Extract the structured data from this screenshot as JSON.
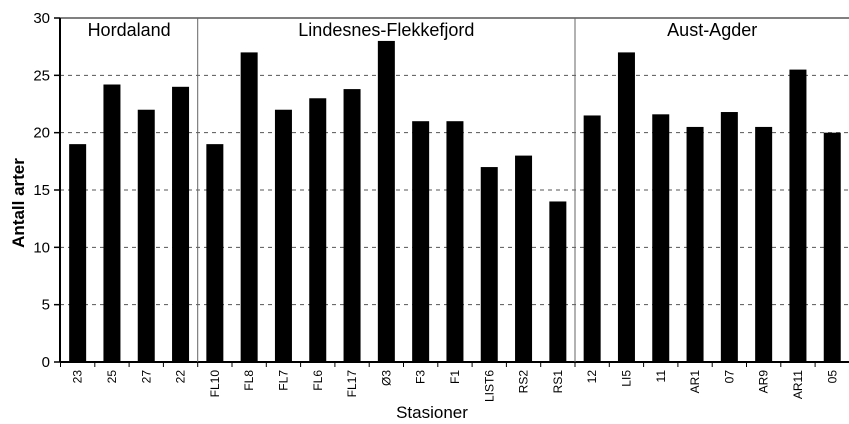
{
  "chart_data": {
    "type": "bar",
    "title": "",
    "xlabel": "Stasioner",
    "ylabel": "Antall arter",
    "ylim": [
      0,
      30
    ],
    "yticks": [
      0,
      5,
      10,
      15,
      20,
      25,
      30
    ],
    "grid": "horizontal dashed",
    "bar_color": "#000000",
    "groups": [
      {
        "name": "Hordaland",
        "categories": [
          "23",
          "25",
          "27",
          "22"
        ]
      },
      {
        "name": "Lindesnes-Flekkefjord",
        "categories": [
          "FL10",
          "FL8",
          "FL7",
          "FL6",
          "FL17",
          "Ø3",
          "F3",
          "F1",
          "LIST6",
          "RS2",
          "RS1"
        ]
      },
      {
        "name": "Aust-Agder",
        "categories": [
          "12",
          "LI5",
          "11",
          "AR1",
          "07",
          "AR9",
          "AR11",
          "05"
        ]
      }
    ],
    "categories": [
      "23",
      "25",
      "27",
      "22",
      "FL10",
      "FL8",
      "FL7",
      "FL6",
      "FL17",
      "Ø3",
      "F3",
      "F1",
      "LIST6",
      "RS2",
      "RS1",
      "12",
      "LI5",
      "11",
      "AR1",
      "07",
      "AR9",
      "AR11",
      "05"
    ],
    "values": [
      19,
      24.2,
      22,
      24,
      19,
      27,
      22,
      23,
      23.8,
      28,
      21,
      21,
      17,
      18,
      14,
      21.5,
      27,
      21.6,
      20.5,
      21.8,
      20.5,
      25.5,
      20
    ]
  }
}
